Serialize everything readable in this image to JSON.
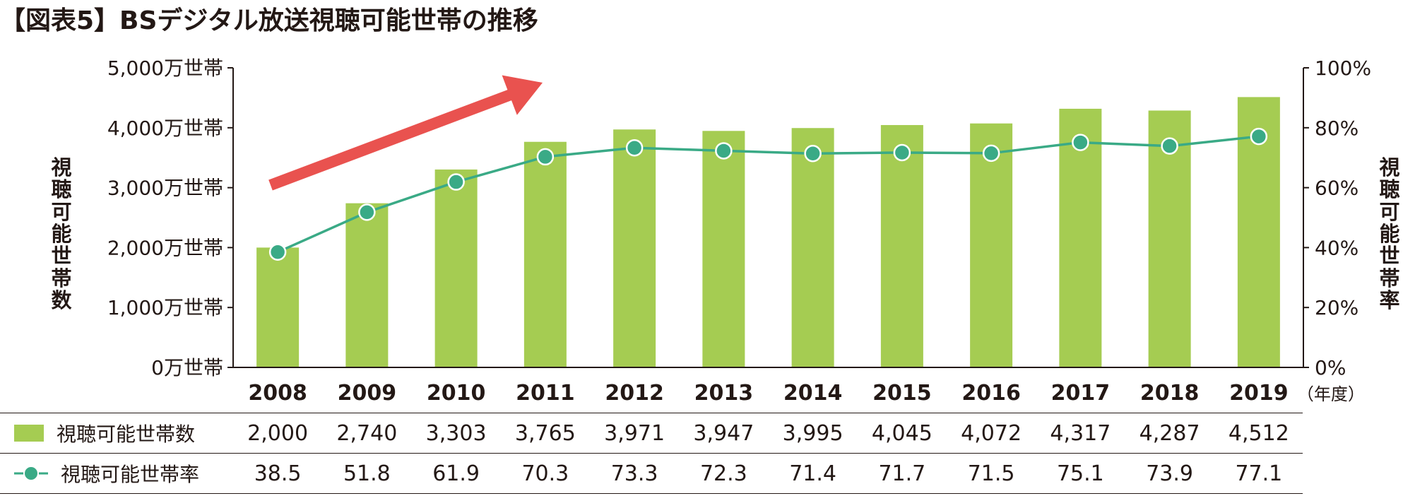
{
  "title": "【図表5】BSデジタル放送視聴可能世帯の推移",
  "colors": {
    "bar": "#a5cc52",
    "line": "#3aaa86",
    "arrow": "#e9524f",
    "axis": "#231815",
    "text": "#231815"
  },
  "chart_data": {
    "type": "bar+line",
    "categories": [
      "2008",
      "2009",
      "2010",
      "2011",
      "2012",
      "2013",
      "2014",
      "2015",
      "2016",
      "2017",
      "2018",
      "2019"
    ],
    "x_unit": "（年度）",
    "series": [
      {
        "name": "視聴可能世帯数",
        "type": "bar",
        "axis": "left",
        "values": [
          2000,
          2740,
          3303,
          3765,
          3971,
          3947,
          3995,
          4045,
          4072,
          4317,
          4287,
          4512
        ],
        "display": [
          "2,000",
          "2,740",
          "3,303",
          "3,765",
          "3,971",
          "3,947",
          "3,995",
          "4,045",
          "4,072",
          "4,317",
          "4,287",
          "4,512"
        ]
      },
      {
        "name": "視聴可能世帯率",
        "type": "line",
        "axis": "right",
        "values": [
          38.5,
          51.8,
          61.9,
          70.3,
          73.3,
          72.3,
          71.4,
          71.7,
          71.5,
          75.1,
          73.9,
          77.1
        ],
        "display": [
          "38.5",
          "51.8",
          "61.9",
          "70.3",
          "73.3",
          "72.3",
          "71.4",
          "71.7",
          "71.5",
          "75.1",
          "73.9",
          "77.1"
        ]
      }
    ],
    "y_left": {
      "label": "視聴可能世帯数",
      "range": [
        0,
        5000
      ],
      "ticks": [
        "0万世帯",
        "1,000万世帯",
        "2,000万世帯",
        "3,000万世帯",
        "4,000万世帯",
        "5,000万世帯"
      ]
    },
    "y_right": {
      "label": "視聴可能世帯率",
      "range": [
        0,
        100
      ],
      "ticks": [
        "0%",
        "20%",
        "40%",
        "60%",
        "80%",
        "100%"
      ]
    },
    "grid": false,
    "legend": "table-below"
  }
}
